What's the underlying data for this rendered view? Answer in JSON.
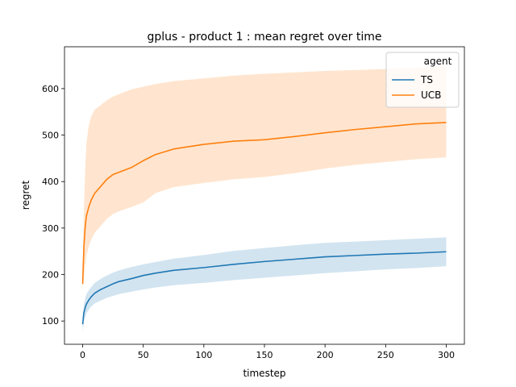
{
  "chart_data": {
    "type": "line",
    "title": "gplus - product 1 : mean regret over time",
    "xlabel": "timestep",
    "ylabel": "regret",
    "xlim": [
      -15,
      315
    ],
    "ylim": [
      50,
      690
    ],
    "xticks": [
      0,
      50,
      100,
      150,
      200,
      250,
      300
    ],
    "yticks": [
      100,
      200,
      300,
      400,
      500,
      600
    ],
    "grid": false,
    "legend": {
      "title": "agent",
      "placement": "top-right",
      "entries": [
        "TS",
        "UCB"
      ]
    },
    "series": [
      {
        "name": "TS",
        "color": "#1f77b4",
        "band_color": "#1f77b4",
        "x": [
          0,
          1,
          2,
          3,
          5,
          7,
          10,
          15,
          20,
          25,
          30,
          40,
          50,
          60,
          75,
          100,
          125,
          150,
          175,
          200,
          225,
          250,
          275,
          300
        ],
        "values": [
          93,
          118,
          128,
          136,
          145,
          152,
          160,
          168,
          174,
          180,
          185,
          191,
          198,
          203,
          209,
          215,
          222,
          228,
          233,
          238,
          241,
          244,
          246,
          249
        ],
        "lower": [
          77,
          100,
          108,
          116,
          124,
          131,
          138,
          144,
          150,
          154,
          158,
          163,
          168,
          172,
          177,
          182,
          188,
          193,
          198,
          203,
          207,
          211,
          214,
          218
        ],
        "upper": [
          110,
          136,
          148,
          157,
          166,
          173,
          182,
          191,
          198,
          204,
          209,
          216,
          222,
          227,
          234,
          242,
          251,
          257,
          263,
          268,
          271,
          274,
          277,
          280
        ]
      },
      {
        "name": "UCB",
        "color": "#ff7f0e",
        "band_color": "#ff7f0e",
        "x": [
          0,
          1,
          2,
          3,
          5,
          7,
          10,
          15,
          20,
          25,
          30,
          40,
          50,
          60,
          75,
          100,
          125,
          150,
          175,
          200,
          225,
          250,
          275,
          300
        ],
        "values": [
          180,
          260,
          300,
          325,
          345,
          360,
          375,
          390,
          405,
          415,
          420,
          430,
          445,
          458,
          470,
          480,
          487,
          490,
          497,
          505,
          512,
          518,
          524,
          527
        ],
        "lower": [
          165,
          195,
          220,
          240,
          260,
          275,
          290,
          305,
          320,
          330,
          336,
          345,
          355,
          375,
          388,
          397,
          405,
          410,
          418,
          428,
          436,
          442,
          448,
          452
        ],
        "upper": [
          200,
          340,
          420,
          480,
          520,
          540,
          555,
          565,
          575,
          583,
          588,
          598,
          604,
          610,
          616,
          622,
          628,
          632,
          635,
          638,
          640,
          642,
          645,
          648
        ]
      }
    ]
  }
}
